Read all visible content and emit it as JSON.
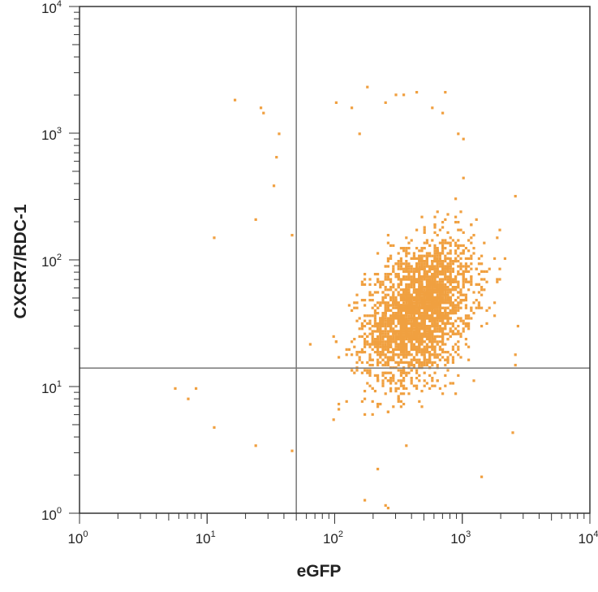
{
  "chart_data": {
    "type": "scatter",
    "plot_style": "flow-cytometry dot plot",
    "xlabel": "eGFP",
    "ylabel": "CXCR7/RDC-1",
    "xscale": "log",
    "yscale": "log",
    "xlim": [
      1,
      10000
    ],
    "ylim": [
      1,
      10000
    ],
    "x_tick_labels": [
      {
        "base": "10",
        "exp": "0"
      },
      {
        "base": "10",
        "exp": "1"
      },
      {
        "base": "10",
        "exp": "2"
      },
      {
        "base": "10",
        "exp": "3"
      },
      {
        "base": "10",
        "exp": "4"
      }
    ],
    "y_tick_labels": [
      {
        "base": "10",
        "exp": "0"
      },
      {
        "base": "10",
        "exp": "1"
      },
      {
        "base": "10",
        "exp": "2"
      },
      {
        "base": "10",
        "exp": "3"
      },
      {
        "base": "10",
        "exp": "4"
      }
    ],
    "quadrant_gates": {
      "x": 50,
      "y": 14
    },
    "grid": false,
    "legend": "none",
    "point_color": "#f0a040",
    "gate_color": "#777777",
    "population": {
      "approx_events": 2600,
      "main_cluster_center": {
        "x": 450,
        "y": 40
      },
      "main_cluster_x_range": [
        100,
        2000
      ],
      "main_cluster_y_range": [
        5,
        200
      ]
    },
    "points": [
      {
        "x": 16,
        "y": 1900
      },
      {
        "x": 26,
        "y": 1600
      },
      {
        "x": 27,
        "y": 1500
      },
      {
        "x": 35,
        "y": 1000
      },
      {
        "x": 34,
        "y": 650
      },
      {
        "x": 32,
        "y": 400
      },
      {
        "x": 24,
        "y": 210
      },
      {
        "x": 11,
        "y": 150
      },
      {
        "x": 46,
        "y": 160
      },
      {
        "x": 180,
        "y": 2400
      },
      {
        "x": 300,
        "y": 2100
      },
      {
        "x": 340,
        "y": 2050
      },
      {
        "x": 430,
        "y": 2150
      },
      {
        "x": 720,
        "y": 2150
      },
      {
        "x": 100,
        "y": 1750
      },
      {
        "x": 130,
        "y": 1650
      },
      {
        "x": 250,
        "y": 1750
      },
      {
        "x": 560,
        "y": 1600
      },
      {
        "x": 700,
        "y": 1450
      },
      {
        "x": 150,
        "y": 1000
      },
      {
        "x": 900,
        "y": 1000
      },
      {
        "x": 1000,
        "y": 900
      },
      {
        "x": 5.5,
        "y": 10
      },
      {
        "x": 7,
        "y": 8
      },
      {
        "x": 8,
        "y": 10
      },
      {
        "x": 11,
        "y": 4.8
      },
      {
        "x": 24,
        "y": 3.5
      },
      {
        "x": 45,
        "y": 3.2
      },
      {
        "x": 170,
        "y": 1.3
      },
      {
        "x": 260,
        "y": 1.1
      },
      {
        "x": 240,
        "y": 1.2
      },
      {
        "x": 1400,
        "y": 2
      },
      {
        "x": 2400,
        "y": 4.5
      },
      {
        "x": 2700,
        "y": 30
      },
      {
        "x": 2500,
        "y": 18
      },
      {
        "x": 2500,
        "y": 15
      }
    ]
  }
}
